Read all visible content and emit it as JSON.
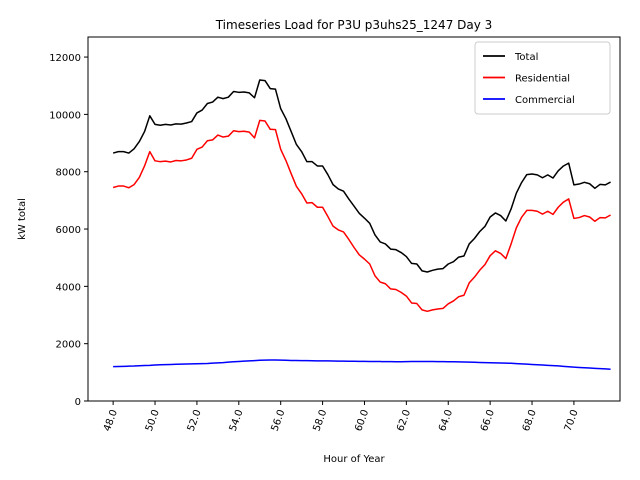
{
  "chart_data": {
    "type": "line",
    "title": "Timeseries Load for P3U p3uhs25_1247  Day 3",
    "xlabel": "Hour of Year",
    "ylabel": "kW total",
    "xlim": [
      46.8,
      72.2
    ],
    "ylim": [
      0,
      12700
    ],
    "xticks": [
      48.0,
      50.0,
      52.0,
      54.0,
      56.0,
      58.0,
      60.0,
      62.0,
      64.0,
      66.0,
      68.0,
      70.0
    ],
    "xtick_labels": [
      "48.0",
      "50.0",
      "52.0",
      "54.0",
      "56.0",
      "58.0",
      "60.0",
      "62.0",
      "64.0",
      "66.0",
      "68.0",
      "70.0"
    ],
    "yticks": [
      0,
      2000,
      4000,
      6000,
      8000,
      10000,
      12000
    ],
    "ytick_labels": [
      "0",
      "2000",
      "4000",
      "6000",
      "8000",
      "10000",
      "12000"
    ],
    "legend_position": "top-right",
    "x": [
      48.0,
      48.25,
      48.5,
      48.75,
      49.0,
      49.25,
      49.5,
      49.75,
      50.0,
      50.25,
      50.5,
      50.75,
      51.0,
      51.25,
      51.5,
      51.75,
      52.0,
      52.25,
      52.5,
      52.75,
      53.0,
      53.25,
      53.5,
      53.75,
      54.0,
      54.25,
      54.5,
      54.75,
      55.0,
      55.25,
      55.5,
      55.75,
      56.0,
      56.25,
      56.5,
      56.75,
      57.0,
      57.25,
      57.5,
      57.75,
      58.0,
      58.25,
      58.5,
      58.75,
      59.0,
      59.25,
      59.5,
      59.75,
      60.0,
      60.25,
      60.5,
      60.75,
      61.0,
      61.25,
      61.5,
      61.75,
      62.0,
      62.25,
      62.5,
      62.75,
      63.0,
      63.25,
      63.5,
      63.75,
      64.0,
      64.25,
      64.5,
      64.75,
      65.0,
      65.25,
      65.5,
      65.75,
      66.0,
      66.25,
      66.5,
      66.75,
      67.0,
      67.25,
      67.5,
      67.75,
      68.0,
      68.25,
      68.5,
      68.75,
      69.0,
      69.25,
      69.5,
      69.75,
      70.0,
      70.25,
      70.5,
      70.75,
      71.0,
      71.25,
      71.5,
      71.75
    ],
    "series": [
      {
        "name": "Total",
        "color": "#000000",
        "values": [
          8650,
          8700,
          8700,
          8650,
          8800,
          9050,
          9400,
          9950,
          9650,
          9620,
          9650,
          9630,
          9670,
          9660,
          9700,
          9750,
          10050,
          10150,
          10380,
          10430,
          10600,
          10550,
          10600,
          10800,
          10770,
          10780,
          10750,
          10580,
          11200,
          11180,
          10900,
          10880,
          10200,
          9850,
          9400,
          8950,
          8700,
          8350,
          8350,
          8200,
          8200,
          7900,
          7550,
          7400,
          7320,
          7050,
          6800,
          6550,
          6380,
          6200,
          5800,
          5550,
          5480,
          5300,
          5280,
          5180,
          5040,
          4800,
          4780,
          4540,
          4500,
          4560,
          4600,
          4620,
          4780,
          4860,
          5020,
          5060,
          5480,
          5670,
          5910,
          6090,
          6420,
          6560,
          6470,
          6280,
          6700,
          7250,
          7620,
          7900,
          7920,
          7890,
          7790,
          7890,
          7780,
          8030,
          8200,
          8300,
          7540,
          7570,
          7630,
          7580,
          7420,
          7560,
          7540,
          7640
        ]
      },
      {
        "name": "Residential",
        "color": "#ff0000",
        "values": [
          7450,
          7500,
          7500,
          7440,
          7550,
          7800,
          8200,
          8700,
          8380,
          8350,
          8370,
          8340,
          8390,
          8380,
          8410,
          8470,
          8780,
          8860,
          9080,
          9110,
          9280,
          9210,
          9240,
          9430,
          9400,
          9410,
          9380,
          9180,
          9790,
          9770,
          9480,
          9470,
          8780,
          8390,
          7930,
          7490,
          7230,
          6910,
          6920,
          6760,
          6760,
          6440,
          6100,
          5970,
          5900,
          5640,
          5360,
          5100,
          4950,
          4780,
          4370,
          4150,
          4090,
          3910,
          3890,
          3790,
          3660,
          3420,
          3400,
          3180,
          3130,
          3180,
          3210,
          3230,
          3390,
          3490,
          3640,
          3690,
          4120,
          4320,
          4560,
          4760,
          5070,
          5240,
          5150,
          4970,
          5480,
          6040,
          6410,
          6650,
          6650,
          6620,
          6520,
          6620,
          6510,
          6760,
          6940,
          7050,
          6370,
          6400,
          6470,
          6420,
          6270,
          6400,
          6390,
          6490
        ]
      },
      {
        "name": "Commercial",
        "color": "#0000ff",
        "values": [
          1200,
          1205,
          1210,
          1215,
          1220,
          1230,
          1240,
          1245,
          1255,
          1265,
          1270,
          1275,
          1280,
          1285,
          1290,
          1295,
          1300,
          1305,
          1310,
          1320,
          1330,
          1340,
          1355,
          1370,
          1380,
          1390,
          1400,
          1410,
          1420,
          1425,
          1430,
          1430,
          1425,
          1420,
          1415,
          1412,
          1410,
          1408,
          1405,
          1402,
          1400,
          1398,
          1395,
          1392,
          1390,
          1388,
          1386,
          1384,
          1382,
          1380,
          1378,
          1376,
          1374,
          1372,
          1370,
          1370,
          1375,
          1378,
          1380,
          1380,
          1378,
          1376,
          1374,
          1372,
          1370,
          1368,
          1365,
          1360,
          1355,
          1350,
          1345,
          1340,
          1335,
          1330,
          1325,
          1320,
          1315,
          1305,
          1295,
          1285,
          1275,
          1265,
          1255,
          1245,
          1235,
          1225,
          1210,
          1195,
          1180,
          1170,
          1160,
          1150,
          1140,
          1130,
          1120,
          1110
        ]
      }
    ]
  }
}
